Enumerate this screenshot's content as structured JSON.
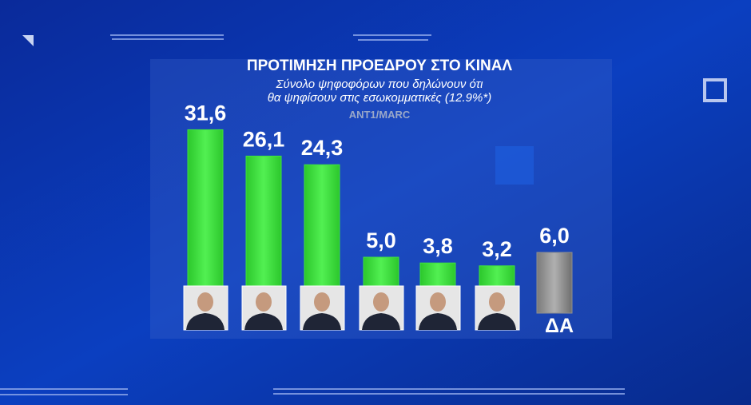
{
  "chart_data": {
    "type": "bar",
    "title": "ΠΡΟΤΙΜΗΣΗ ΠΡΟΕΔΡΟΥ ΣΤΟ ΚΙΝΑΛ",
    "subtitle": [
      "Σύνολο ψηφοφόρων που δηλώνουν ότι",
      "θα ψηφίσουν στις εσωκομματικές (12.9%*)"
    ],
    "source": "ANT1/MARC",
    "categories": [
      null,
      null,
      null,
      null,
      null,
      null,
      "ΔΑ"
    ],
    "values": [
      31.6,
      26.1,
      24.3,
      5.0,
      3.8,
      3.2,
      6.0
    ],
    "value_labels": [
      "31,6",
      "26,1",
      "24,3",
      "5,0",
      "3,8",
      "3,2",
      "6,0"
    ],
    "colors": [
      "#3fe23f",
      "#3fe23f",
      "#3fe23f",
      "#3fe23f",
      "#3fe23f",
      "#3fe23f",
      "#8f8f8f"
    ]
  }
}
